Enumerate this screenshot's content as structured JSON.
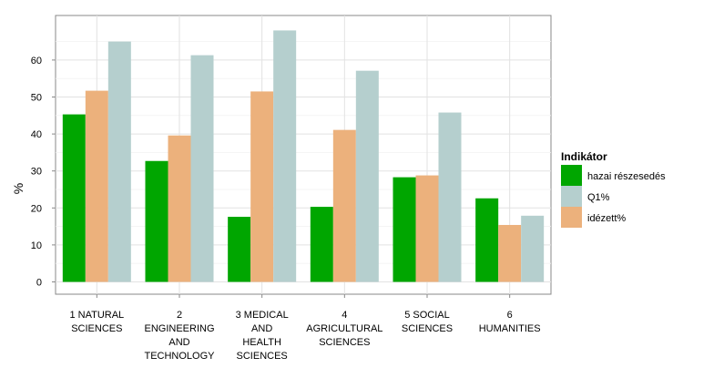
{
  "chart_data": {
    "type": "bar",
    "ylabel": "%",
    "ylim": [
      0,
      68
    ],
    "yticks": [
      0,
      10,
      20,
      30,
      40,
      50,
      60
    ],
    "grid": true,
    "legend_position": "right",
    "categories": [
      [
        "1 NATURAL",
        "SCIENCES"
      ],
      [
        "2",
        "ENGINEERING",
        "AND",
        "TECHNOLOGY"
      ],
      [
        "3 MEDICAL",
        "AND",
        "HEALTH",
        "SCIENCES"
      ],
      [
        "4",
        "AGRICULTURAL",
        "SCIENCES"
      ],
      [
        "5 SOCIAL",
        "SCIENCES"
      ],
      [
        "6",
        "HUMANITIES"
      ]
    ],
    "series": [
      {
        "name": "hazai részesedés",
        "color": "#00a600",
        "values": [
          45.3,
          32.7,
          17.6,
          20.3,
          28.3,
          22.6
        ]
      },
      {
        "name": "idézett%",
        "color": "#ecb17c",
        "values": [
          51.7,
          39.6,
          51.5,
          41.1,
          28.8,
          15.4
        ]
      },
      {
        "name": "Q1%",
        "color": "#b5cfce",
        "values": [
          65.0,
          61.3,
          68.0,
          57.1,
          45.8,
          17.9
        ]
      }
    ],
    "legend": {
      "title": "Indikátor",
      "items": [
        {
          "label": "hazai részesedés",
          "color": "#00a600"
        },
        {
          "label": "Q1%",
          "color": "#b5cfce"
        },
        {
          "label": "idézett%",
          "color": "#ecb17c"
        }
      ]
    }
  }
}
